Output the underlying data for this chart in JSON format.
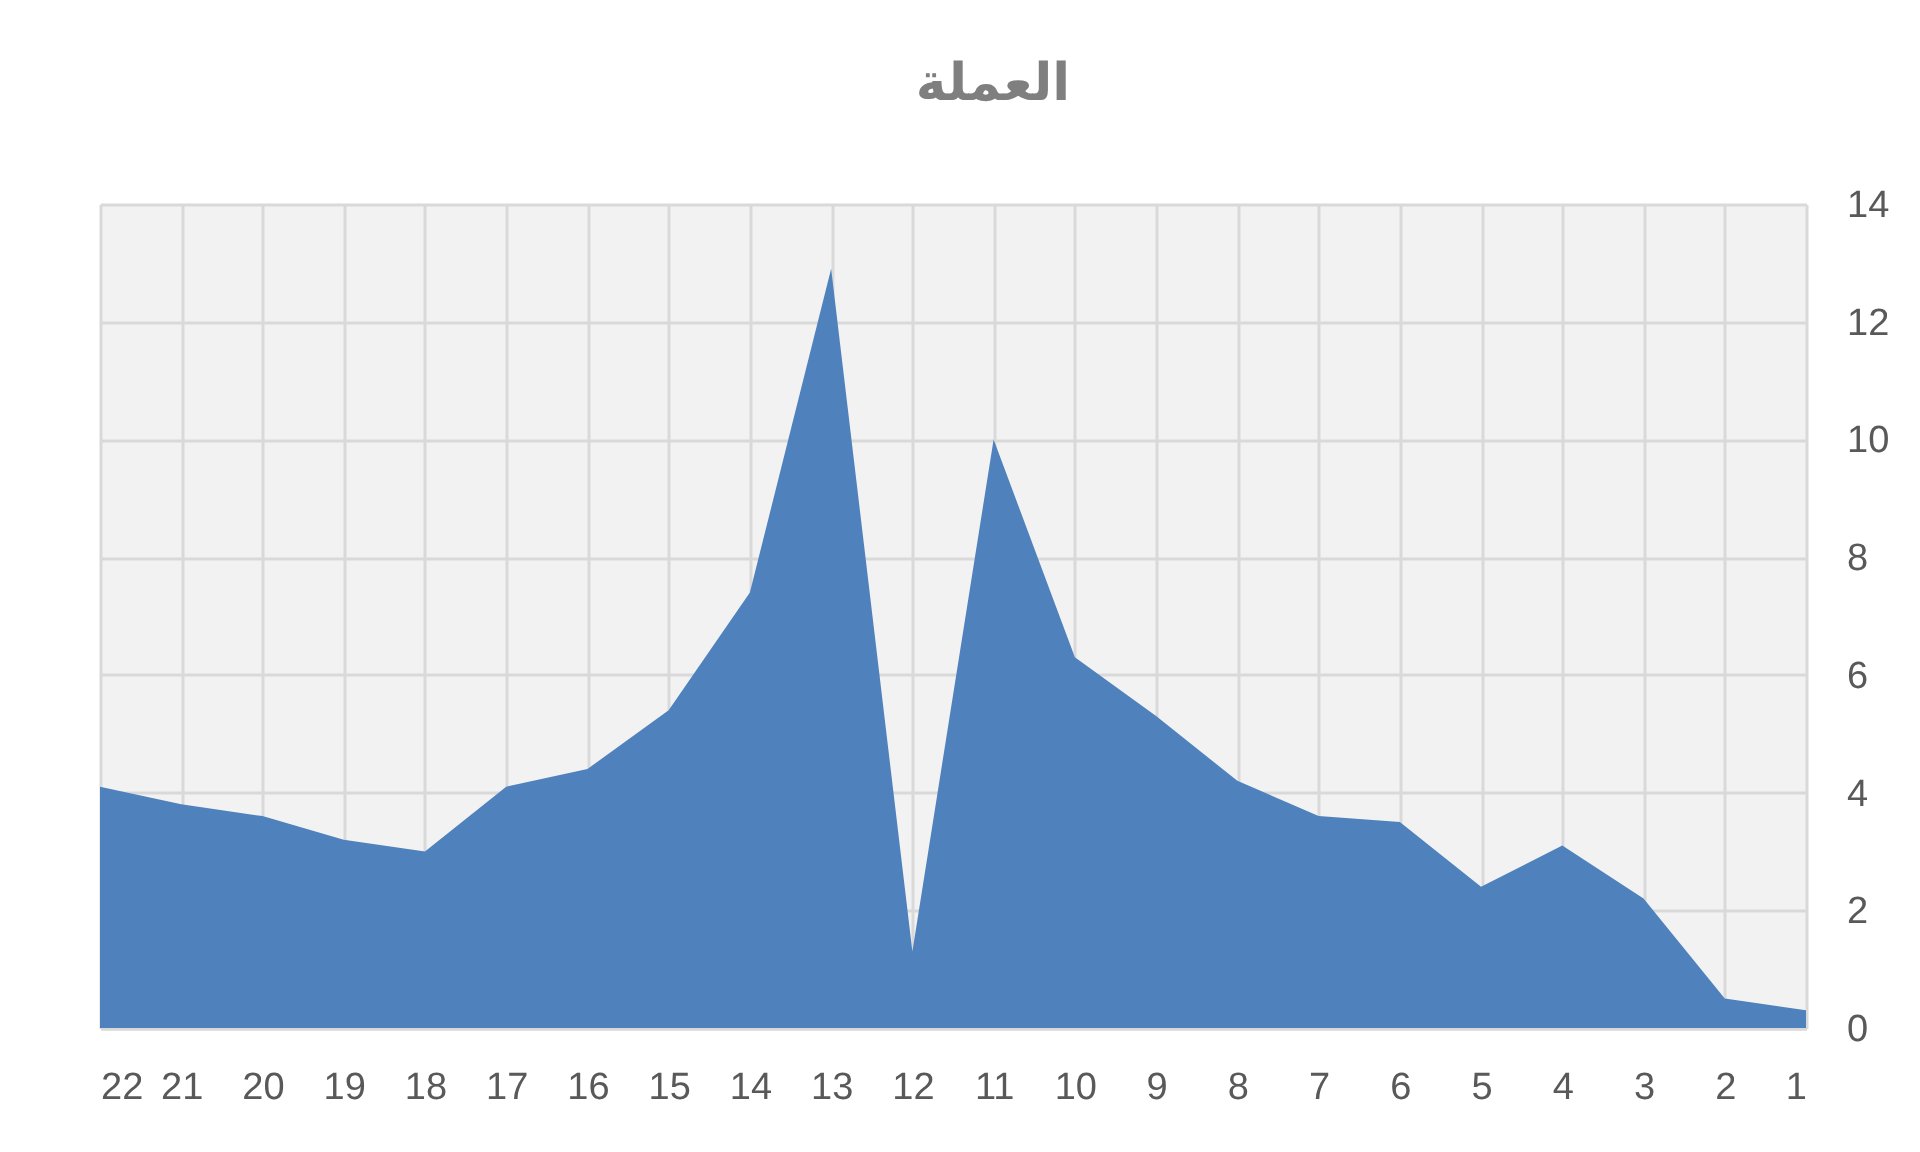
{
  "chart_data": {
    "type": "area",
    "title": "العملة",
    "categories": [
      "22",
      "21",
      "20",
      "19",
      "18",
      "17",
      "16",
      "15",
      "14",
      "13",
      "12",
      "11",
      "10",
      "9",
      "8",
      "7",
      "6",
      "5",
      "4",
      "3",
      "2",
      "1"
    ],
    "series": [
      {
        "color": "#4f81bd",
        "values": [
          4.1,
          3.8,
          3.6,
          3.2,
          3.0,
          4.1,
          4.4,
          5.4,
          7.4,
          12.9,
          1.3,
          10.0,
          6.3,
          5.3,
          4.2,
          3.6,
          3.5,
          2.4,
          3.1,
          2.2,
          0.5,
          0.3
        ]
      }
    ],
    "ylim": [
      0,
      14
    ],
    "yticks": [
      0,
      2,
      4,
      6,
      8,
      10,
      12,
      14
    ],
    "grid": true
  }
}
